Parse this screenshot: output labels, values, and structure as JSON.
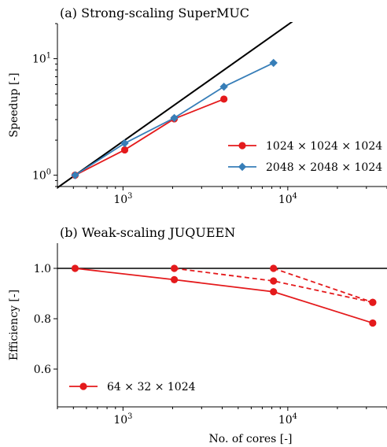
{
  "chart_data": [
    {
      "type": "line",
      "title": "(a) Strong-scaling SuperMUC",
      "xlabel": "",
      "ylabel": "Speedup [-]",
      "xscale": "log",
      "yscale": "log",
      "xlim": [
        400,
        40000
      ],
      "ylim": [
        0.8,
        20
      ],
      "x_ticks": [
        {
          "value": 1000,
          "base": "10",
          "exp": "3"
        },
        {
          "value": 10000,
          "base": "10",
          "exp": "4"
        }
      ],
      "y_ticks": [
        {
          "value": 1,
          "base": "10",
          "exp": "0"
        },
        {
          "value": 10,
          "base": "10",
          "exp": "1"
        }
      ],
      "ideal_line": {
        "x": [
          400,
          40000
        ],
        "y": [
          0.78125,
          78.125
        ]
      },
      "legend_position": "lower-right",
      "series": [
        {
          "name": "1024 × 1024 × 1024",
          "color": "#e41a1c",
          "marker": "circle",
          "line": "solid",
          "x": [
            512,
            1024,
            2048,
            4096
          ],
          "y": [
            1.0,
            1.65,
            3.05,
            4.5
          ]
        },
        {
          "name": "2048 × 2048 × 1024",
          "color": "#377eb8",
          "marker": "diamond",
          "line": "solid",
          "x": [
            512,
            1024,
            2048,
            4096,
            8192
          ],
          "y": [
            1.0,
            1.88,
            3.1,
            5.75,
            9.2
          ]
        }
      ]
    },
    {
      "type": "line",
      "title": "(b) Weak-scaling JUQUEEN",
      "xlabel": "No. of cores [-]",
      "ylabel": "Efficiency [-]",
      "xscale": "log",
      "yscale": "linear",
      "xlim": [
        400,
        40000
      ],
      "ylim": [
        0.45,
        1.1
      ],
      "x_ticks": [
        {
          "value": 1000,
          "base": "10",
          "exp": "3"
        },
        {
          "value": 10000,
          "base": "10",
          "exp": "4"
        }
      ],
      "y_ticks": [
        {
          "value": 0.6,
          "label": "0.6"
        },
        {
          "value": 0.8,
          "label": "0.8"
        },
        {
          "value": 1.0,
          "label": "1.0"
        }
      ],
      "reference_line": {
        "y": 1.0
      },
      "legend_position": "lower-left",
      "series": [
        {
          "name": "64 × 32 × 1024",
          "color": "#e41a1c",
          "marker": "circle",
          "line": "solid",
          "x": [
            512,
            2048,
            8192,
            32768
          ],
          "y": [
            1.0,
            0.955,
            0.907,
            0.783
          ]
        },
        {
          "name": "",
          "color": "#e41a1c",
          "marker": "circle",
          "line": "dashed",
          "x": [
            2048,
            8192,
            32768
          ],
          "y": [
            1.0,
            0.95,
            0.865
          ]
        },
        {
          "name": "",
          "color": "#e41a1c",
          "marker": "circle",
          "line": "dashed",
          "x": [
            8192,
            32768
          ],
          "y": [
            1.0,
            0.865
          ]
        }
      ]
    }
  ]
}
